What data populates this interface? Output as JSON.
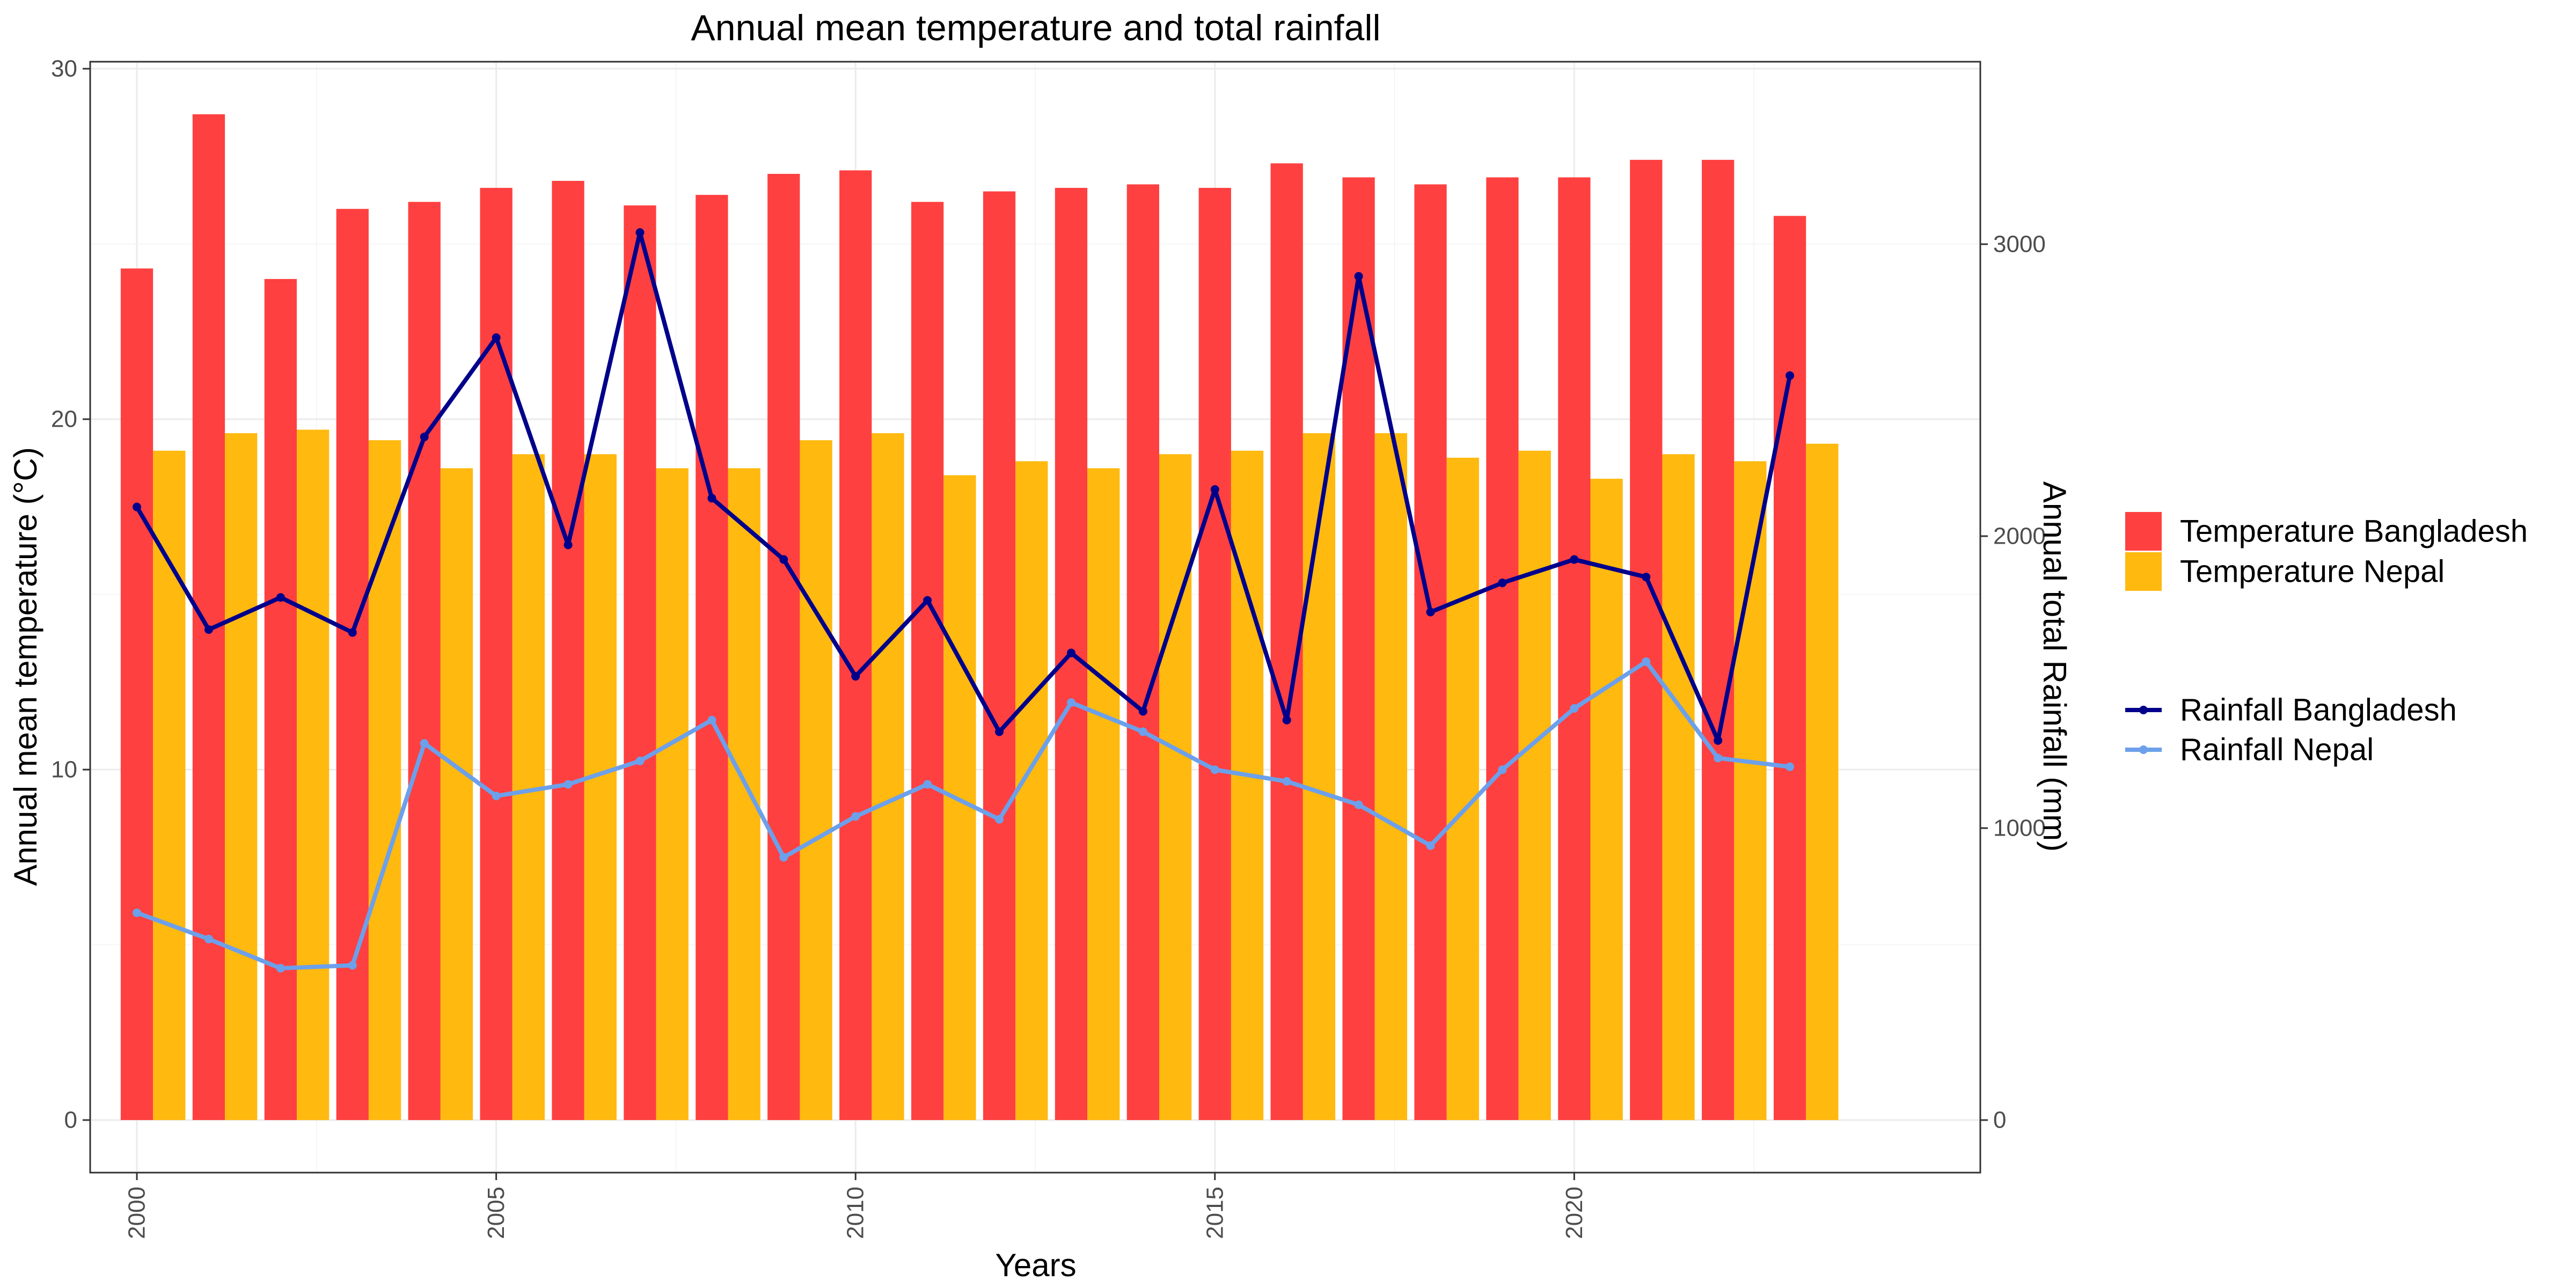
{
  "chart_data": {
    "type": "bar",
    "title": "Annual mean temperature and total rainfall",
    "xlabel": "Years",
    "ylabel": "Annual mean temperature (°C)",
    "y2label": "Annual total Rainfall (mm)",
    "x": [
      2000,
      2001,
      2002,
      2003,
      2004,
      2005,
      2006,
      2007,
      2008,
      2009,
      2010,
      2011,
      2012,
      2013,
      2014,
      2015,
      2016,
      2017,
      2018,
      2019,
      2020,
      2021,
      2022,
      2023
    ],
    "xticks": [
      2000,
      2005,
      2010,
      2015,
      2020
    ],
    "xlim": [
      1999.35,
      2025.65
    ],
    "ylim": [
      -1.5,
      30.2
    ],
    "yticks": [
      0,
      10,
      20,
      30
    ],
    "y2lim": [
      -180,
      3625
    ],
    "y2ticks": [
      0,
      1000,
      2000,
      3000
    ],
    "grid": true,
    "legend_position": "right",
    "bar_series": [
      {
        "name": "Temperature Bangladesh",
        "color": "#ff4040",
        "values": [
          24.3,
          28.7,
          24.0,
          26.0,
          26.2,
          26.6,
          26.8,
          26.1,
          26.4,
          27.0,
          27.1,
          26.2,
          26.5,
          26.6,
          26.7,
          26.6,
          27.3,
          26.9,
          26.7,
          26.9,
          26.9,
          27.4,
          27.4,
          25.8
        ]
      },
      {
        "name": "Temperature Nepal",
        "color": "#ffb90f",
        "values": [
          19.1,
          19.6,
          19.7,
          19.4,
          18.6,
          19.0,
          19.0,
          18.6,
          18.6,
          19.4,
          19.6,
          18.4,
          18.8,
          18.6,
          19.0,
          19.1,
          19.6,
          19.6,
          18.9,
          19.1,
          18.3,
          19.0,
          18.8,
          19.3
        ]
      }
    ],
    "line_series": [
      {
        "name": "Rainfall Bangladesh",
        "color": "#00008b",
        "values": [
          2100,
          1680,
          1790,
          1670,
          2340,
          2680,
          1970,
          3040,
          2130,
          1920,
          1520,
          1780,
          1330,
          1600,
          1400,
          2160,
          1370,
          2890,
          1740,
          1840,
          1920,
          1860,
          1300,
          2550
        ]
      },
      {
        "name": "Rainfall Nepal",
        "color": "#6ca0ea",
        "values": [
          710,
          620,
          520,
          530,
          1290,
          1110,
          1150,
          1230,
          1370,
          900,
          1040,
          1150,
          1030,
          1430,
          1330,
          1200,
          1160,
          1080,
          940,
          1200,
          1410,
          1570,
          1240,
          1210
        ]
      }
    ]
  }
}
